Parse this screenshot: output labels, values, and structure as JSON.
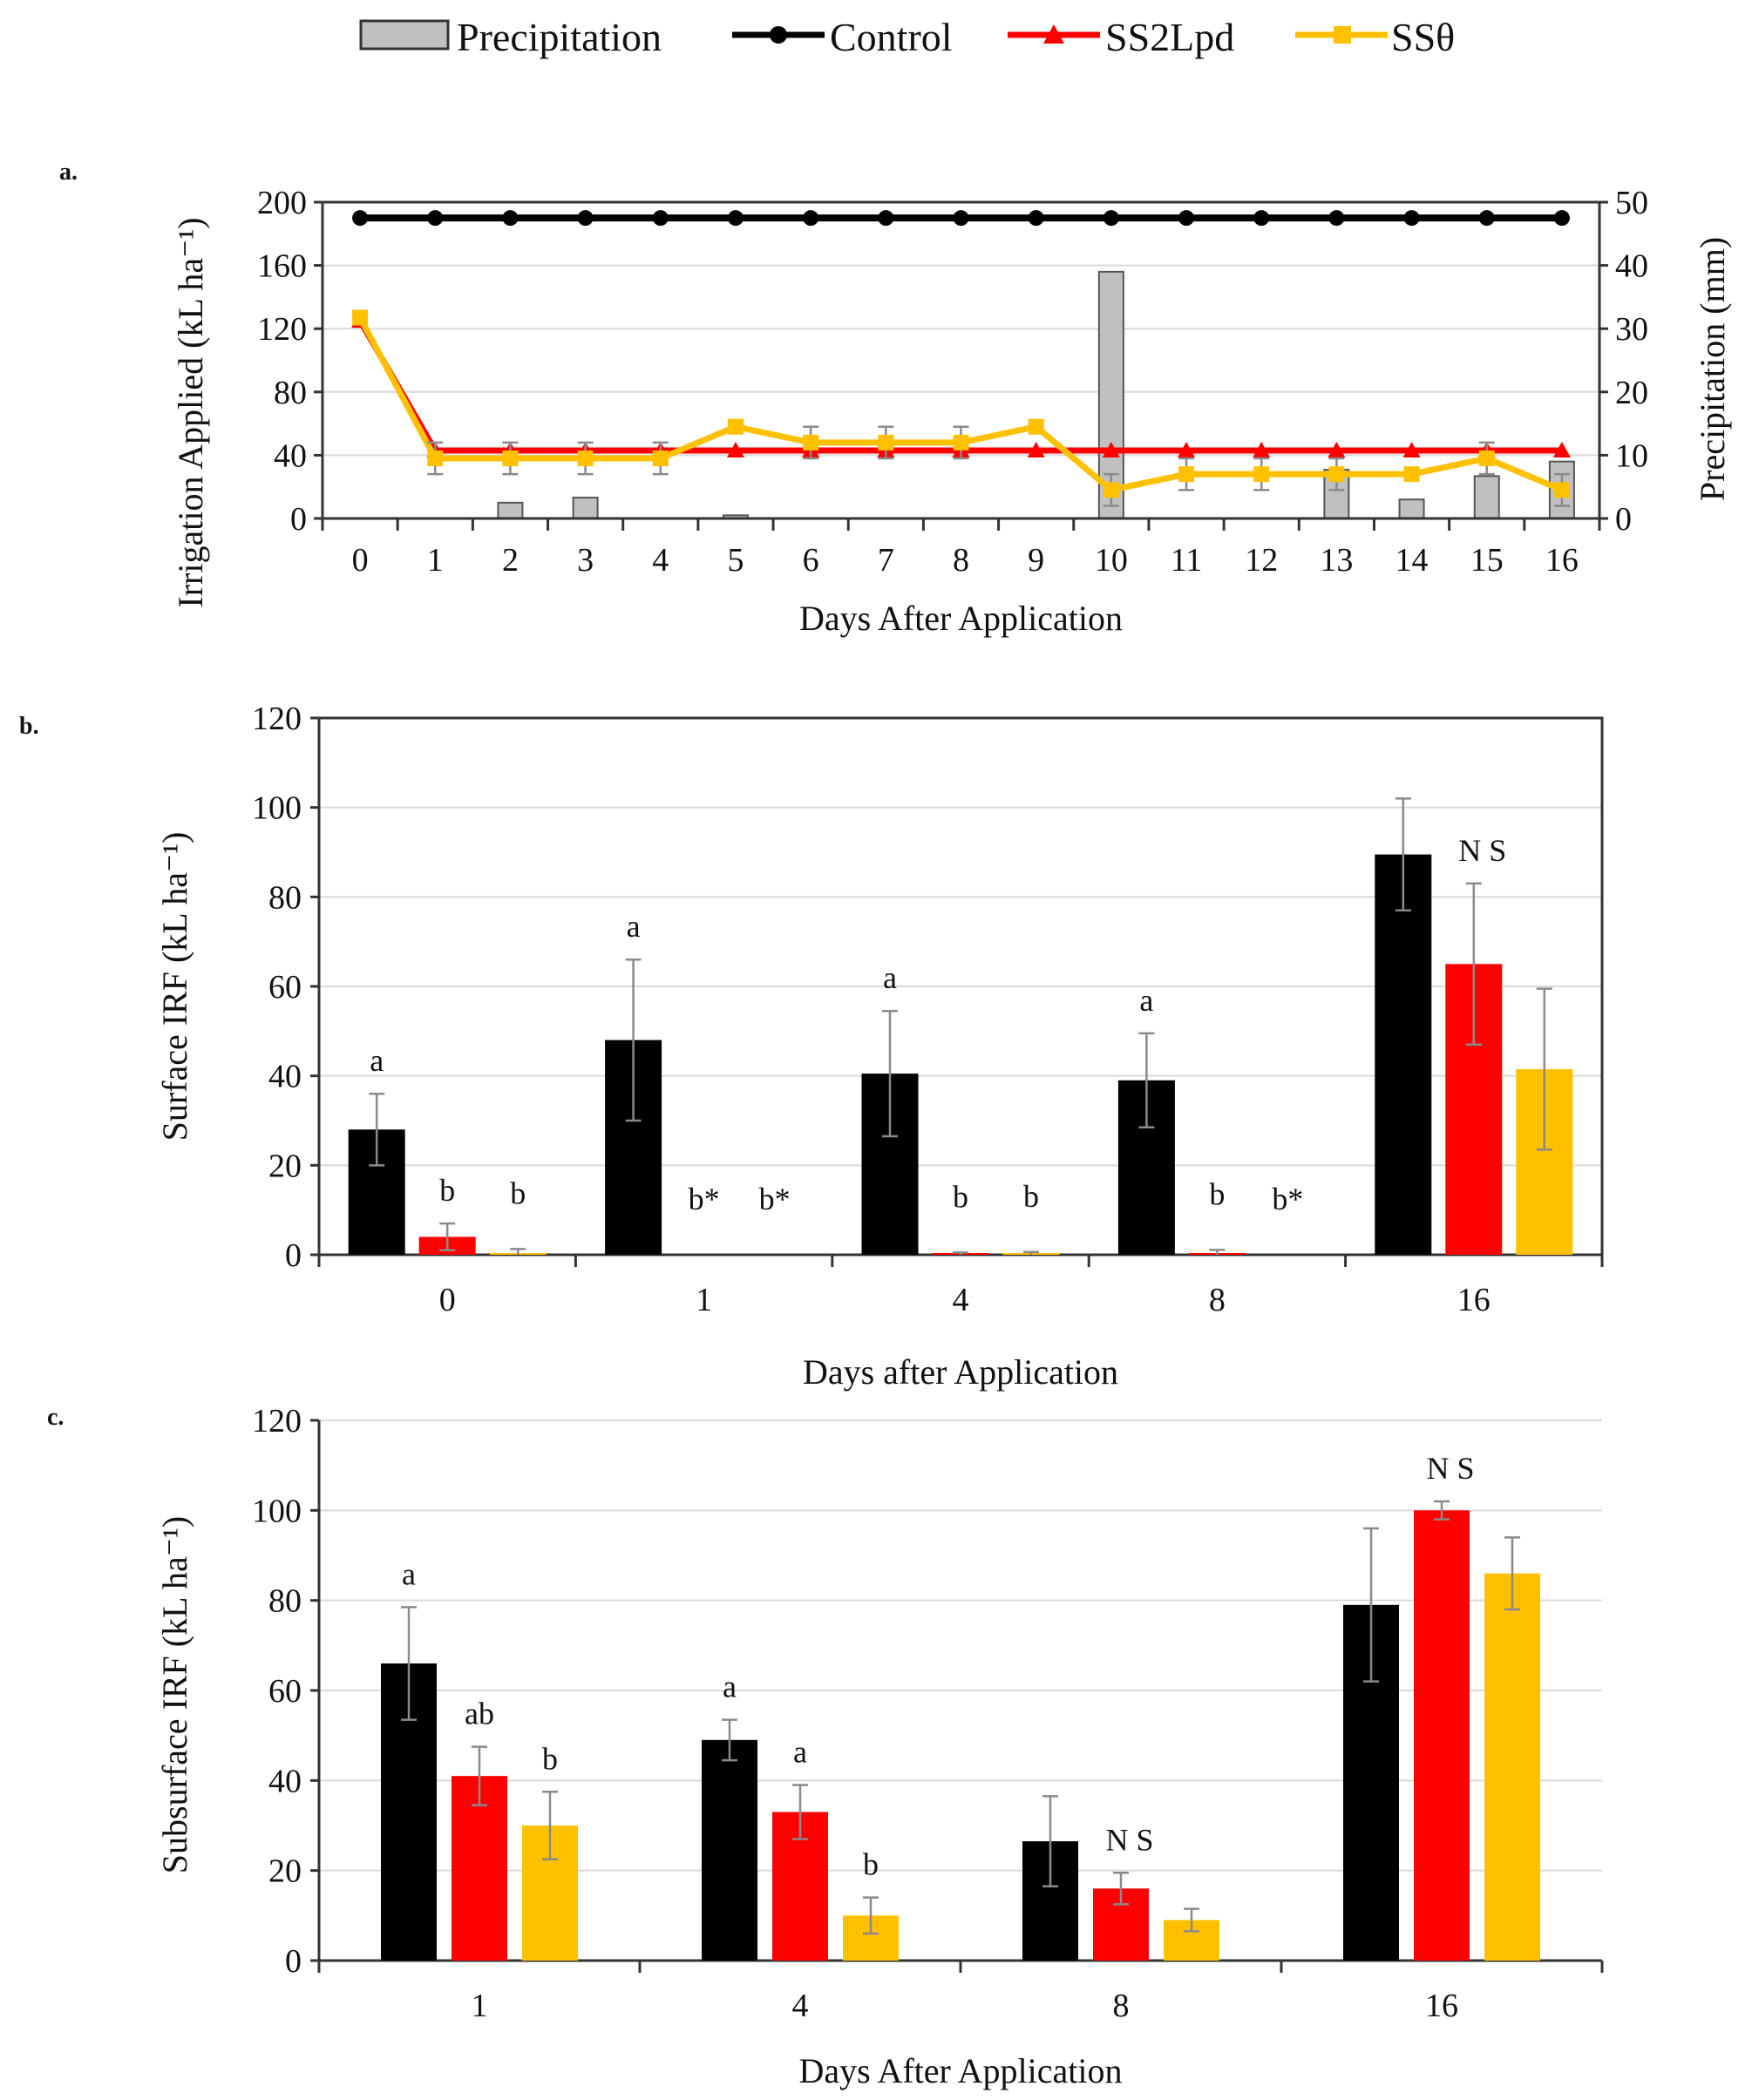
{
  "legend": {
    "items": [
      {
        "label": "Precipitation",
        "kind": "bar",
        "color": "#c0c0c0"
      },
      {
        "label": "Control",
        "kind": "line-circle",
        "color": "#000000"
      },
      {
        "label": "SS2Lpd",
        "kind": "line-triangle",
        "color": "#ff0000"
      },
      {
        "label": "SSθ",
        "kind": "line-square",
        "color": "#ffc000"
      }
    ]
  },
  "colors": {
    "control": "#000000",
    "ss2lpd": "#ff0000",
    "sstheta": "#ffc000",
    "precip": "#c0c0c0"
  },
  "chart_data": [
    {
      "panel": "a.",
      "type": "line",
      "xlabel": "Days After Application",
      "ylabel": "Irrigation Applied (kL ha⁻¹)",
      "y2label": "Precipitation (mm)",
      "ylim": [
        0,
        200
      ],
      "y2lim": [
        0,
        50
      ],
      "yticks": [
        "0",
        "40",
        "80",
        "120",
        "160",
        "200"
      ],
      "y2ticks": [
        "0",
        "10",
        "20",
        "30",
        "40",
        "50"
      ],
      "x": [
        "0",
        "1",
        "2",
        "3",
        "4",
        "5",
        "6",
        "7",
        "8",
        "9",
        "10",
        "11",
        "12",
        "13",
        "14",
        "15",
        "16"
      ],
      "series": [
        {
          "name": "Control",
          "values": [
            190,
            190,
            190,
            190,
            190,
            190,
            190,
            190,
            190,
            190,
            190,
            190,
            190,
            190,
            190,
            190,
            190
          ]
        },
        {
          "name": "SS2Lpd",
          "values": [
            125,
            43,
            43,
            43,
            43,
            43,
            43,
            43,
            43,
            43,
            43,
            43,
            43,
            43,
            43,
            43,
            43
          ]
        },
        {
          "name": "SSθ",
          "values": [
            127,
            38,
            38,
            38,
            38,
            58,
            48,
            48,
            48,
            58,
            18,
            28,
            28,
            28,
            28,
            38,
            18
          ],
          "error": [
            0,
            10,
            10,
            10,
            10,
            0,
            10,
            10,
            10,
            0,
            10,
            10,
            10,
            10,
            0,
            10,
            10
          ]
        }
      ],
      "precipitation_mm": [
        0,
        0,
        2.5,
        3.3,
        0,
        0.5,
        0,
        0,
        0,
        0,
        39,
        0,
        0,
        7.7,
        3,
        6.7,
        9
      ]
    },
    {
      "panel": "b.",
      "type": "bar",
      "xlabel": "Days after Application",
      "ylabel": "Surface IRF  (kL ha⁻¹)",
      "ylim": [
        0,
        120
      ],
      "yticks": [
        "0",
        "20",
        "40",
        "60",
        "80",
        "100",
        "120"
      ],
      "categories": [
        "0",
        "1",
        "4",
        "8",
        "16"
      ],
      "series": [
        {
          "name": "Control",
          "values": [
            28,
            48,
            40.5,
            39,
            89.5
          ],
          "error": [
            8,
            18,
            14,
            10.5,
            12.5
          ]
        },
        {
          "name": "SS2Lpd",
          "values": [
            4,
            0,
            0.2,
            0.3,
            65
          ],
          "error": [
            3,
            0,
            0.3,
            0.8,
            18
          ]
        },
        {
          "name": "SSθ",
          "values": [
            0.3,
            0,
            0.3,
            0,
            41.5
          ],
          "error": [
            1,
            0,
            0.3,
            0,
            18
          ]
        }
      ],
      "letters": [
        {
          "cat": 0,
          "series": 0,
          "text": "a"
        },
        {
          "cat": 0,
          "series": 1,
          "text": "b"
        },
        {
          "cat": 0,
          "series": 2,
          "text": "b"
        },
        {
          "cat": 1,
          "series": 0,
          "text": "a"
        },
        {
          "cat": 1,
          "series": 1,
          "text": "b*"
        },
        {
          "cat": 1,
          "series": 2,
          "text": "b*"
        },
        {
          "cat": 2,
          "series": 0,
          "text": "a"
        },
        {
          "cat": 2,
          "series": 1,
          "text": "b"
        },
        {
          "cat": 2,
          "series": 2,
          "text": "b"
        },
        {
          "cat": 3,
          "series": 0,
          "text": "a"
        },
        {
          "cat": 3,
          "series": 1,
          "text": "b"
        },
        {
          "cat": 3,
          "series": 2,
          "text": "b*"
        },
        {
          "cat": 4,
          "series": 1,
          "text": "N S"
        }
      ]
    },
    {
      "panel": "c.",
      "type": "bar",
      "xlabel": "Days After Application",
      "ylabel": "Subsurface IRF (kL ha⁻¹)",
      "ylim": [
        0,
        120
      ],
      "yticks": [
        "0",
        "20",
        "40",
        "60",
        "80",
        "100",
        "120"
      ],
      "categories": [
        "1",
        "4",
        "8",
        "16"
      ],
      "series": [
        {
          "name": "Control",
          "values": [
            66,
            49,
            26.5,
            79
          ],
          "error": [
            12.5,
            4.5,
            10,
            17
          ]
        },
        {
          "name": "SS2Lpd",
          "values": [
            41,
            33,
            16,
            100
          ],
          "error": [
            6.5,
            6,
            3.5,
            2
          ]
        },
        {
          "name": "SSθ",
          "values": [
            30,
            10,
            9,
            86
          ],
          "error": [
            7.5,
            4,
            2.5,
            8
          ]
        }
      ],
      "letters": [
        {
          "cat": 0,
          "series": 0,
          "text": "a"
        },
        {
          "cat": 0,
          "series": 1,
          "text": "ab"
        },
        {
          "cat": 0,
          "series": 2,
          "text": "b"
        },
        {
          "cat": 1,
          "series": 0,
          "text": "a"
        },
        {
          "cat": 1,
          "series": 1,
          "text": "a"
        },
        {
          "cat": 1,
          "series": 2,
          "text": "b"
        },
        {
          "cat": 2,
          "series": 1,
          "text": "N S"
        },
        {
          "cat": 3,
          "series": 1,
          "text": "N S"
        }
      ]
    }
  ]
}
